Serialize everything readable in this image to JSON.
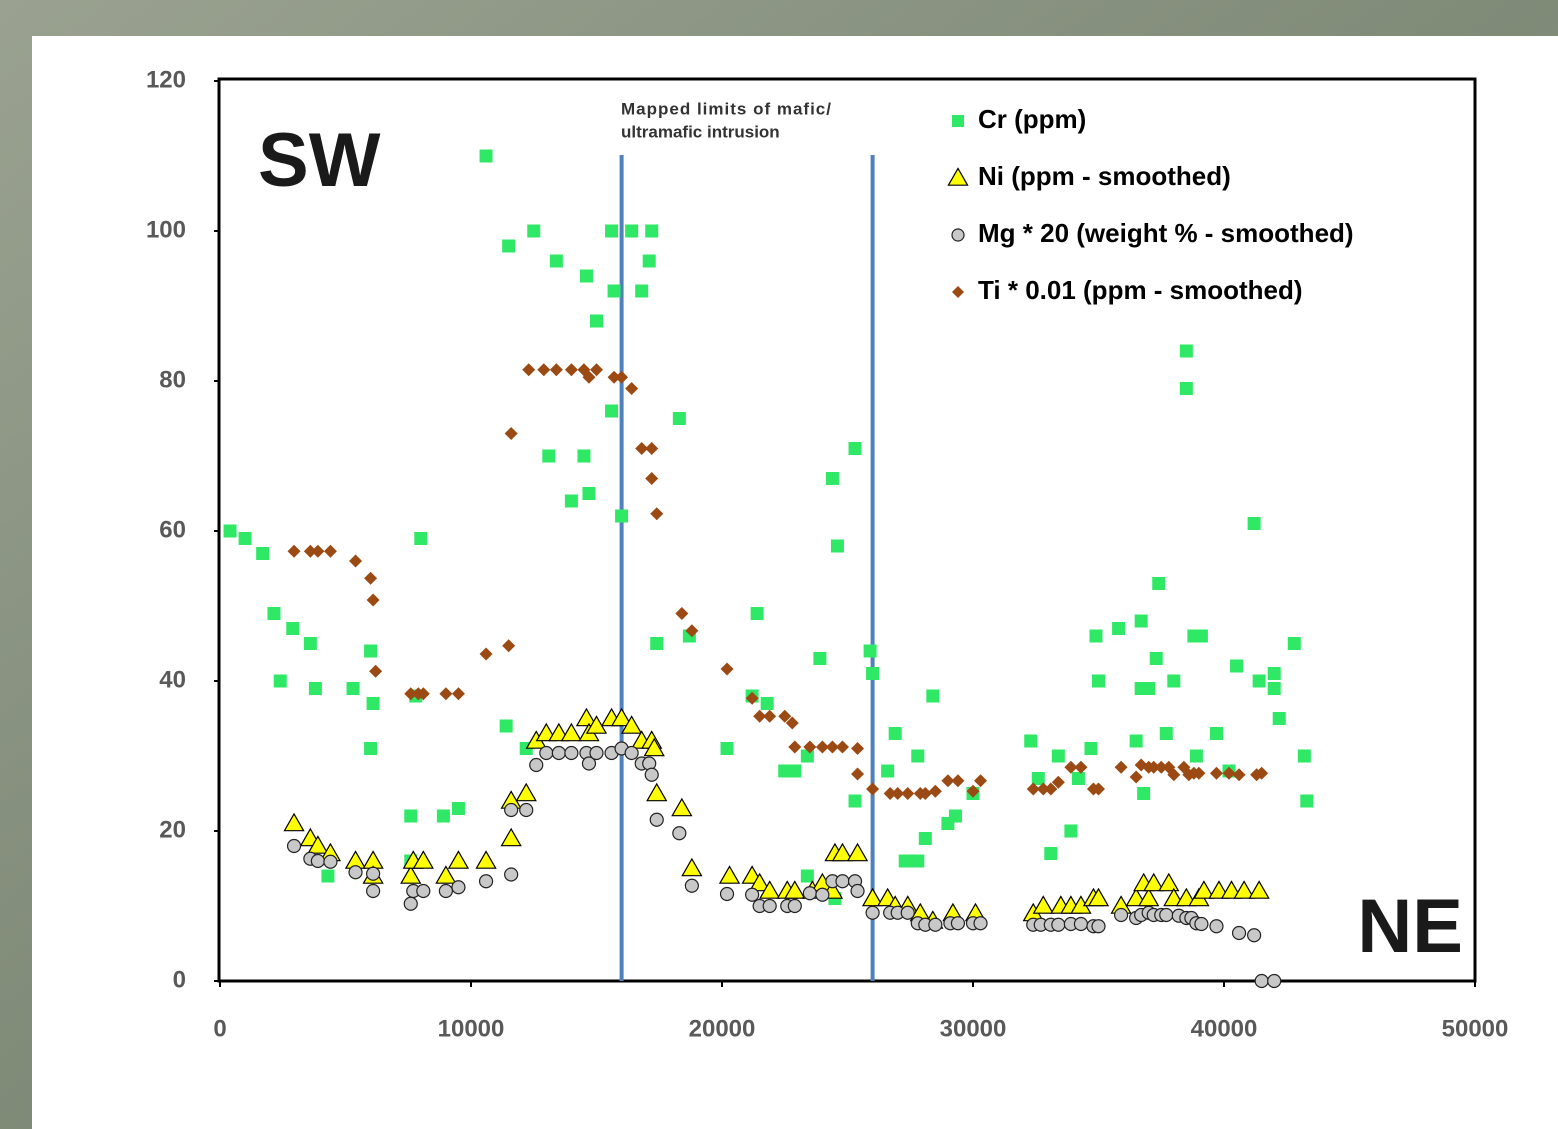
{
  "chart_data": {
    "type": "scatter",
    "xlim": [
      0,
      50000
    ],
    "xticks": [
      0,
      10000,
      20000,
      30000,
      40000,
      50000
    ],
    "ylim": [
      0,
      120
    ],
    "yticks": [
      0,
      20,
      40,
      60,
      80,
      100,
      120
    ],
    "legend": "top-right",
    "annotations": [
      "SW",
      "NE",
      "Mapped limits of mafic/",
      "ultramafic intrusion"
    ],
    "vlines": [
      16000,
      26000
    ],
    "vline_color": "#4f81bd",
    "series": [
      {
        "name": "Cr (ppm)",
        "marker": "square",
        "color": "#2ee866",
        "x": [
          400,
          1000,
          1700,
          2150,
          2400,
          2900,
          3600,
          3800,
          4300,
          5300,
          6000,
          6000,
          6100,
          7600,
          7600,
          7800,
          8000,
          8900,
          9500,
          10600,
          11500,
          11400,
          12200,
          12500,
          13100,
          13400,
          14000,
          14600,
          14500,
          14700,
          15000,
          15600,
          15600,
          15700,
          16000,
          16400,
          16800,
          17200,
          17100,
          17400,
          18300,
          18700,
          20200,
          21200,
          21400,
          21800,
          22500,
          22900,
          23400,
          23400,
          23900,
          24400,
          24500,
          24600,
          25300,
          25300,
          25900,
          26000,
          26600,
          26900,
          27300,
          27800,
          27800,
          28100,
          28400,
          29000,
          29300,
          30000,
          32300,
          32600,
          33100,
          33400,
          33900,
          34200,
          34700,
          34900,
          35000,
          35800,
          36500,
          36700,
          36700,
          36800,
          37000,
          37300,
          37400,
          37700,
          38000,
          38500,
          38500,
          38800,
          38900,
          39100,
          39700,
          40200,
          40500,
          41200,
          41400,
          42000,
          42000,
          42200,
          42800,
          43200,
          43300
        ],
        "values": [
          60,
          59,
          57,
          49,
          40,
          47,
          45,
          39,
          14,
          39,
          44,
          31,
          37,
          16,
          22,
          38,
          59,
          22,
          23,
          110,
          98,
          34,
          31,
          100,
          70,
          96,
          64,
          94,
          70,
          65,
          88,
          76,
          100,
          92,
          62,
          100,
          92,
          100,
          96,
          45,
          75,
          46,
          31,
          38,
          49,
          37,
          28,
          28,
          30,
          14,
          43,
          67,
          11,
          58,
          24,
          71,
          44,
          41,
          28,
          33,
          16,
          16,
          30,
          19,
          38,
          21,
          22,
          25,
          32,
          27,
          17,
          30,
          20,
          27,
          31,
          46,
          40,
          47,
          32,
          48,
          39,
          25,
          39,
          43,
          53,
          33,
          40,
          84,
          79,
          46,
          30,
          46,
          33,
          28,
          42,
          61,
          40,
          39,
          41,
          35,
          45,
          30,
          24
        ]
      },
      {
        "name": "Ni (ppm - smoothed)",
        "marker": "triangle",
        "color": "#ffff00",
        "x": [
          2950,
          3600,
          3900,
          4400,
          5400,
          6100,
          6100,
          7600,
          7700,
          8100,
          9000,
          9500,
          10600,
          11600,
          11600,
          12200,
          12600,
          13000,
          13500,
          14000,
          14600,
          14700,
          15000,
          15600,
          16000,
          16400,
          16800,
          17200,
          17300,
          17400,
          18400,
          18800,
          20300,
          21200,
          21500,
          21900,
          22600,
          22900,
          23600,
          24000,
          24400,
          24500,
          24800,
          25400,
          26000,
          26600,
          26900,
          27400,
          27900,
          28400,
          29200,
          30100,
          32400,
          32800,
          33500,
          33900,
          34300,
          34800,
          35000,
          35900,
          36500,
          36800,
          37000,
          37200,
          37800,
          38000,
          38500,
          39000,
          39200,
          39800,
          40300,
          40800,
          41400
        ],
        "values": [
          21,
          19,
          18,
          17,
          16,
          16,
          14,
          14,
          16,
          16,
          14,
          16,
          16,
          19,
          24,
          25,
          32,
          33,
          33,
          33,
          35,
          33,
          34,
          35,
          35,
          34,
          32,
          32,
          31,
          25,
          23,
          15,
          14,
          14,
          13,
          12,
          12,
          12,
          12,
          13,
          12,
          17,
          17,
          17,
          11,
          11,
          10,
          10,
          9,
          8,
          9,
          9,
          9,
          10,
          10,
          10,
          10,
          11,
          11,
          10,
          11,
          13,
          11,
          13,
          13,
          11,
          11,
          11,
          12,
          12,
          12,
          12,
          12
        ]
      },
      {
        "name": "Mg * 20 (weight % - smoothed)",
        "marker": "circle",
        "color": "#c8c8c8",
        "x": [
          2950,
          3600,
          3900,
          4400,
          5400,
          6100,
          6100,
          7600,
          7700,
          8100,
          9000,
          9500,
          10600,
          11600,
          11600,
          12200,
          12600,
          13000,
          13500,
          14000,
          14600,
          14700,
          15000,
          15600,
          16000,
          16400,
          16800,
          17100,
          17200,
          17400,
          18300,
          18800,
          20200,
          21200,
          21500,
          21900,
          22600,
          22900,
          23500,
          24000,
          24400,
          24800,
          25300,
          25400,
          26000,
          26700,
          27000,
          27400,
          27800,
          28100,
          28500,
          29100,
          29400,
          30000,
          30300,
          32400,
          32700,
          33100,
          33400,
          33900,
          34300,
          34800,
          35000,
          35900,
          36500,
          36700,
          37000,
          37200,
          37500,
          37700,
          38200,
          38500,
          38700,
          38900,
          39100,
          39700,
          40600,
          41200,
          41500,
          42000
        ],
        "values": [
          18,
          16.3,
          16,
          15.9,
          14.5,
          14.3,
          12,
          10.3,
          12,
          12,
          12,
          12.5,
          13.3,
          14.2,
          22.8,
          22.8,
          28.8,
          30.4,
          30.4,
          30.4,
          30.4,
          29,
          30.4,
          30.4,
          31,
          30.4,
          29,
          29,
          27.5,
          21.5,
          19.7,
          12.7,
          11.6,
          11.5,
          10,
          10,
          10,
          10,
          11.7,
          11.5,
          13.3,
          13.3,
          13.3,
          12,
          9.1,
          9.1,
          9.1,
          9.1,
          7.7,
          7.5,
          7.5,
          7.7,
          7.7,
          7.7,
          7.7,
          7.5,
          7.5,
          7.5,
          7.5,
          7.6,
          7.6,
          7.3,
          7.3,
          8.8,
          8.4,
          8.8,
          9.1,
          8.8,
          8.8,
          8.8,
          8.7,
          8.4,
          8.4,
          7.7,
          7.6,
          7.3,
          6.4,
          6.1,
          0,
          0
        ]
      },
      {
        "name": "Ti * 0.01 (ppm - smoothed)",
        "marker": "diamond",
        "color": "#9c4a14",
        "x": [
          2950,
          3600,
          3900,
          4400,
          5400,
          6000,
          6100,
          6200,
          7600,
          7900,
          8100,
          9000,
          9500,
          10600,
          11500,
          11600,
          12300,
          12900,
          13400,
          14000,
          14500,
          14700,
          15000,
          15700,
          16000,
          16400,
          16800,
          17200,
          17200,
          17400,
          18400,
          18800,
          20200,
          21200,
          21500,
          21900,
          22500,
          22800,
          22900,
          23500,
          24000,
          24400,
          24800,
          25400,
          25400,
          26000,
          26700,
          27000,
          27400,
          27900,
          28100,
          28500,
          29000,
          29400,
          30000,
          30300,
          32400,
          32800,
          33100,
          33400,
          33900,
          34300,
          34800,
          35000,
          35900,
          36500,
          36700,
          37000,
          37200,
          37500,
          37800,
          38000,
          38400,
          38600,
          38800,
          39000,
          39700,
          40200,
          40600,
          41300,
          41500
        ],
        "values": [
          57.3,
          57.3,
          57.3,
          57.3,
          56,
          53.7,
          50.8,
          41.3,
          38.3,
          38.3,
          38.3,
          38.3,
          38.3,
          43.6,
          44.7,
          73,
          81.5,
          81.5,
          81.5,
          81.5,
          81.5,
          80.5,
          81.5,
          80.5,
          80.5,
          79,
          71,
          71,
          67,
          62.3,
          49,
          46.7,
          41.6,
          37.7,
          35.3,
          35.3,
          35.3,
          34.4,
          31.2,
          31.2,
          31.2,
          31.2,
          31.2,
          31,
          27.6,
          25.6,
          25,
          25,
          25,
          25,
          25,
          25.3,
          26.7,
          26.7,
          25.3,
          26.7,
          25.6,
          25.6,
          25.6,
          26.5,
          28.5,
          28.5,
          25.6,
          25.6,
          28.5,
          27.2,
          28.8,
          28.5,
          28.5,
          28.5,
          28.5,
          27.5,
          28.5,
          27.5,
          27.7,
          27.7,
          27.7,
          27.7,
          27.5,
          27.5,
          27.7
        ]
      }
    ]
  }
}
